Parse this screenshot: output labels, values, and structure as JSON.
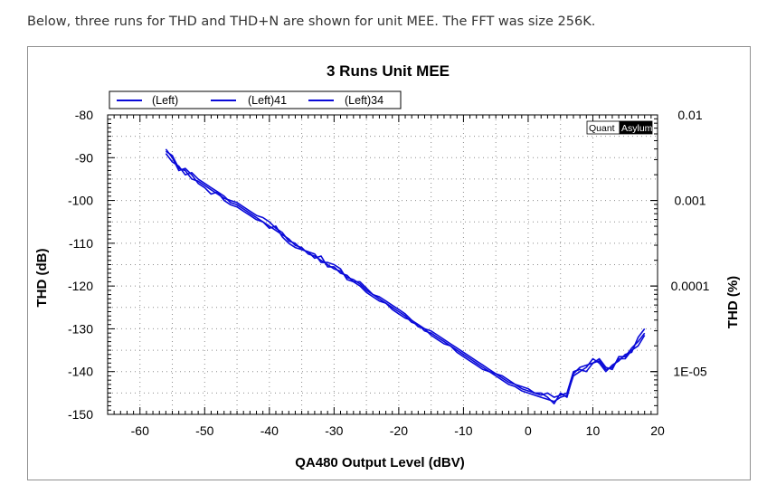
{
  "caption": "Below, three runs for THD and THD+N are shown for unit MEE. The FFT was size 256K.",
  "brand_logo": {
    "left": "Quant",
    "right": "Asylum"
  },
  "chart_data": {
    "type": "line",
    "title": "3 Runs Unit MEE",
    "xlabel": "QA480 Output Level (dBV)",
    "ylabel": "THD (dB)",
    "y2label": "THD (%)",
    "xlim": [
      -65,
      20
    ],
    "ylim": [
      -150,
      -80
    ],
    "x_ticks": [
      "-60",
      "-50",
      "-40",
      "-30",
      "-20",
      "-10",
      "0",
      "10",
      "20"
    ],
    "y_ticks": [
      "-80",
      "-90",
      "-100",
      "-110",
      "-120",
      "-130",
      "-140",
      "-150"
    ],
    "y2_ticks": [
      {
        "label": "0.01",
        "db": -80
      },
      {
        "label": "0.001",
        "db": -100
      },
      {
        "label": "0.0001",
        "db": -120
      },
      {
        "label": "1E-05",
        "db": -140
      }
    ],
    "grid": true,
    "legend_position": "top-left",
    "series": [
      {
        "name": "(Left)",
        "color": "#0a0ad8",
        "points": [
          [
            -56,
            -89
          ],
          [
            -55,
            -91
          ],
          [
            -54,
            -92
          ],
          [
            -53,
            -94
          ],
          [
            -52,
            -93.5
          ],
          [
            -51,
            -95
          ],
          [
            -50,
            -96
          ],
          [
            -49,
            -97
          ],
          [
            -48,
            -98
          ],
          [
            -47,
            -99
          ],
          [
            -46,
            -100.5
          ],
          [
            -45,
            -101
          ],
          [
            -44,
            -102
          ],
          [
            -43,
            -103
          ],
          [
            -42,
            -104
          ],
          [
            -41,
            -105
          ],
          [
            -40,
            -106
          ],
          [
            -39,
            -107
          ],
          [
            -38,
            -108
          ],
          [
            -37,
            -109
          ],
          [
            -36,
            -110.5
          ],
          [
            -35,
            -111
          ],
          [
            -34,
            -112.5
          ],
          [
            -33,
            -113
          ],
          [
            -32,
            -114
          ],
          [
            -31,
            -115
          ],
          [
            -30,
            -116
          ],
          [
            -29,
            -116.5
          ],
          [
            -28,
            -118
          ],
          [
            -27,
            -118.5
          ],
          [
            -26,
            -119.5
          ],
          [
            -25,
            -121
          ],
          [
            -24,
            -122
          ],
          [
            -23,
            -123
          ],
          [
            -22,
            -124
          ],
          [
            -21,
            -125
          ],
          [
            -20,
            -126
          ],
          [
            -19,
            -127
          ],
          [
            -18,
            -128.5
          ],
          [
            -17,
            -129
          ],
          [
            -16,
            -130.5
          ],
          [
            -15,
            -131
          ],
          [
            -14,
            -132
          ],
          [
            -13,
            -133
          ],
          [
            -12,
            -134
          ],
          [
            -11,
            -135
          ],
          [
            -10,
            -136
          ],
          [
            -9,
            -137
          ],
          [
            -8,
            -138
          ],
          [
            -7,
            -139
          ],
          [
            -6,
            -140
          ],
          [
            -5,
            -140.5
          ],
          [
            -4,
            -141.5
          ],
          [
            -3,
            -142.5
          ],
          [
            -2,
            -143
          ],
          [
            -1,
            -144
          ],
          [
            0,
            -144.5
          ],
          [
            1,
            -145
          ],
          [
            2,
            -145.5
          ],
          [
            3,
            -145
          ],
          [
            4,
            -146
          ],
          [
            5,
            -145.5
          ],
          [
            6,
            -145
          ],
          [
            7,
            -140
          ],
          [
            8,
            -139.5
          ],
          [
            9,
            -140
          ],
          [
            10,
            -138
          ],
          [
            11,
            -137.5
          ],
          [
            12,
            -139.5
          ],
          [
            13,
            -139
          ],
          [
            14,
            -137
          ],
          [
            15,
            -137
          ],
          [
            16,
            -135
          ],
          [
            17,
            -134
          ],
          [
            18,
            -131.5
          ]
        ]
      },
      {
        "name": "(Left)41",
        "color": "#0a0ad8",
        "points": [
          [
            -56,
            -88
          ],
          [
            -55,
            -90
          ],
          [
            -54,
            -93
          ],
          [
            -53,
            -92.5
          ],
          [
            -52,
            -94
          ],
          [
            -51,
            -96
          ],
          [
            -50,
            -97
          ],
          [
            -49,
            -98.5
          ],
          [
            -48,
            -98
          ],
          [
            -47,
            -100
          ],
          [
            -46,
            -101
          ],
          [
            -45,
            -101.5
          ],
          [
            -44,
            -102.5
          ],
          [
            -43,
            -103.5
          ],
          [
            -42,
            -104.5
          ],
          [
            -41,
            -105
          ],
          [
            -40,
            -106.5
          ],
          [
            -39,
            -106
          ],
          [
            -38,
            -108.5
          ],
          [
            -37,
            -110
          ],
          [
            -36,
            -111
          ],
          [
            -35,
            -111.5
          ],
          [
            -34,
            -112
          ],
          [
            -33,
            -113.5
          ],
          [
            -32,
            -113
          ],
          [
            -31,
            -115.5
          ],
          [
            -30,
            -115.5
          ],
          [
            -29,
            -117
          ],
          [
            -28,
            -117.5
          ],
          [
            -27,
            -119
          ],
          [
            -26,
            -120
          ],
          [
            -25,
            -121.5
          ],
          [
            -24,
            -122.5
          ],
          [
            -23,
            -123.5
          ],
          [
            -22,
            -124
          ],
          [
            -21,
            -125.5
          ],
          [
            -20,
            -126.5
          ],
          [
            -19,
            -127.5
          ],
          [
            -18,
            -128
          ],
          [
            -17,
            -129.5
          ],
          [
            -16,
            -130
          ],
          [
            -15,
            -131.5
          ],
          [
            -14,
            -132.5
          ],
          [
            -13,
            -133.5
          ],
          [
            -12,
            -134
          ],
          [
            -11,
            -135.5
          ],
          [
            -10,
            -136.5
          ],
          [
            -9,
            -137.5
          ],
          [
            -8,
            -138.5
          ],
          [
            -7,
            -139.5
          ],
          [
            -6,
            -140
          ],
          [
            -5,
            -141
          ],
          [
            -4,
            -142
          ],
          [
            -3,
            -143
          ],
          [
            -2,
            -143.5
          ],
          [
            -1,
            -144.5
          ],
          [
            0,
            -145
          ],
          [
            1,
            -145.5
          ],
          [
            2,
            -146
          ],
          [
            3,
            -146.5
          ],
          [
            4,
            -147
          ],
          [
            5,
            -146
          ],
          [
            6,
            -145.5
          ],
          [
            7,
            -141
          ],
          [
            8,
            -140
          ],
          [
            9,
            -139
          ],
          [
            10,
            -137
          ],
          [
            11,
            -138
          ],
          [
            12,
            -140
          ],
          [
            13,
            -138.5
          ],
          [
            14,
            -137.5
          ],
          [
            15,
            -136
          ],
          [
            16,
            -135.5
          ],
          [
            17,
            -132
          ],
          [
            18,
            -130
          ]
        ]
      },
      {
        "name": "(Left)34",
        "color": "#0a0ad8",
        "points": [
          [
            -56,
            -88.5
          ],
          [
            -55,
            -89.5
          ],
          [
            -54,
            -92.5
          ],
          [
            -53,
            -93
          ],
          [
            -52,
            -95
          ],
          [
            -51,
            -95.5
          ],
          [
            -50,
            -96.5
          ],
          [
            -49,
            -97.5
          ],
          [
            -48,
            -98.5
          ],
          [
            -47,
            -99.5
          ],
          [
            -46,
            -100
          ],
          [
            -45,
            -100.5
          ],
          [
            -44,
            -101.5
          ],
          [
            -43,
            -102.5
          ],
          [
            -42,
            -103.5
          ],
          [
            -41,
            -104
          ],
          [
            -40,
            -105
          ],
          [
            -39,
            -106.5
          ],
          [
            -38,
            -107.5
          ],
          [
            -37,
            -109.5
          ],
          [
            -36,
            -110
          ],
          [
            -35,
            -111.5
          ],
          [
            -34,
            -112
          ],
          [
            -33,
            -112.5
          ],
          [
            -32,
            -114.5
          ],
          [
            -31,
            -114.5
          ],
          [
            -30,
            -115
          ],
          [
            -29,
            -116
          ],
          [
            -28,
            -118.5
          ],
          [
            -27,
            -119
          ],
          [
            -26,
            -119
          ],
          [
            -25,
            -120.5
          ],
          [
            -24,
            -122
          ],
          [
            -23,
            -122.5
          ],
          [
            -22,
            -123.5
          ],
          [
            -21,
            -124.5
          ],
          [
            -20,
            -125.5
          ],
          [
            -19,
            -126.5
          ],
          [
            -18,
            -128
          ],
          [
            -17,
            -129
          ],
          [
            -16,
            -130
          ],
          [
            -15,
            -130.5
          ],
          [
            -14,
            -131.5
          ],
          [
            -13,
            -132.5
          ],
          [
            -12,
            -133.5
          ],
          [
            -11,
            -134.5
          ],
          [
            -10,
            -135.5
          ],
          [
            -9,
            -136.5
          ],
          [
            -8,
            -137.5
          ],
          [
            -7,
            -138.5
          ],
          [
            -6,
            -139.5
          ],
          [
            -5,
            -140.5
          ],
          [
            -4,
            -141
          ],
          [
            -3,
            -142
          ],
          [
            -2,
            -143
          ],
          [
            -1,
            -143.5
          ],
          [
            0,
            -144
          ],
          [
            1,
            -145
          ],
          [
            2,
            -145
          ],
          [
            3,
            -146
          ],
          [
            4,
            -147.5
          ],
          [
            5,
            -145
          ],
          [
            6,
            -146
          ],
          [
            7,
            -140.5
          ],
          [
            8,
            -139
          ],
          [
            9,
            -138.5
          ],
          [
            10,
            -138
          ],
          [
            11,
            -137
          ],
          [
            12,
            -139
          ],
          [
            13,
            -139.5
          ],
          [
            14,
            -136.5
          ],
          [
            15,
            -136.5
          ],
          [
            16,
            -134.5
          ],
          [
            17,
            -133
          ],
          [
            18,
            -131
          ]
        ]
      }
    ]
  }
}
